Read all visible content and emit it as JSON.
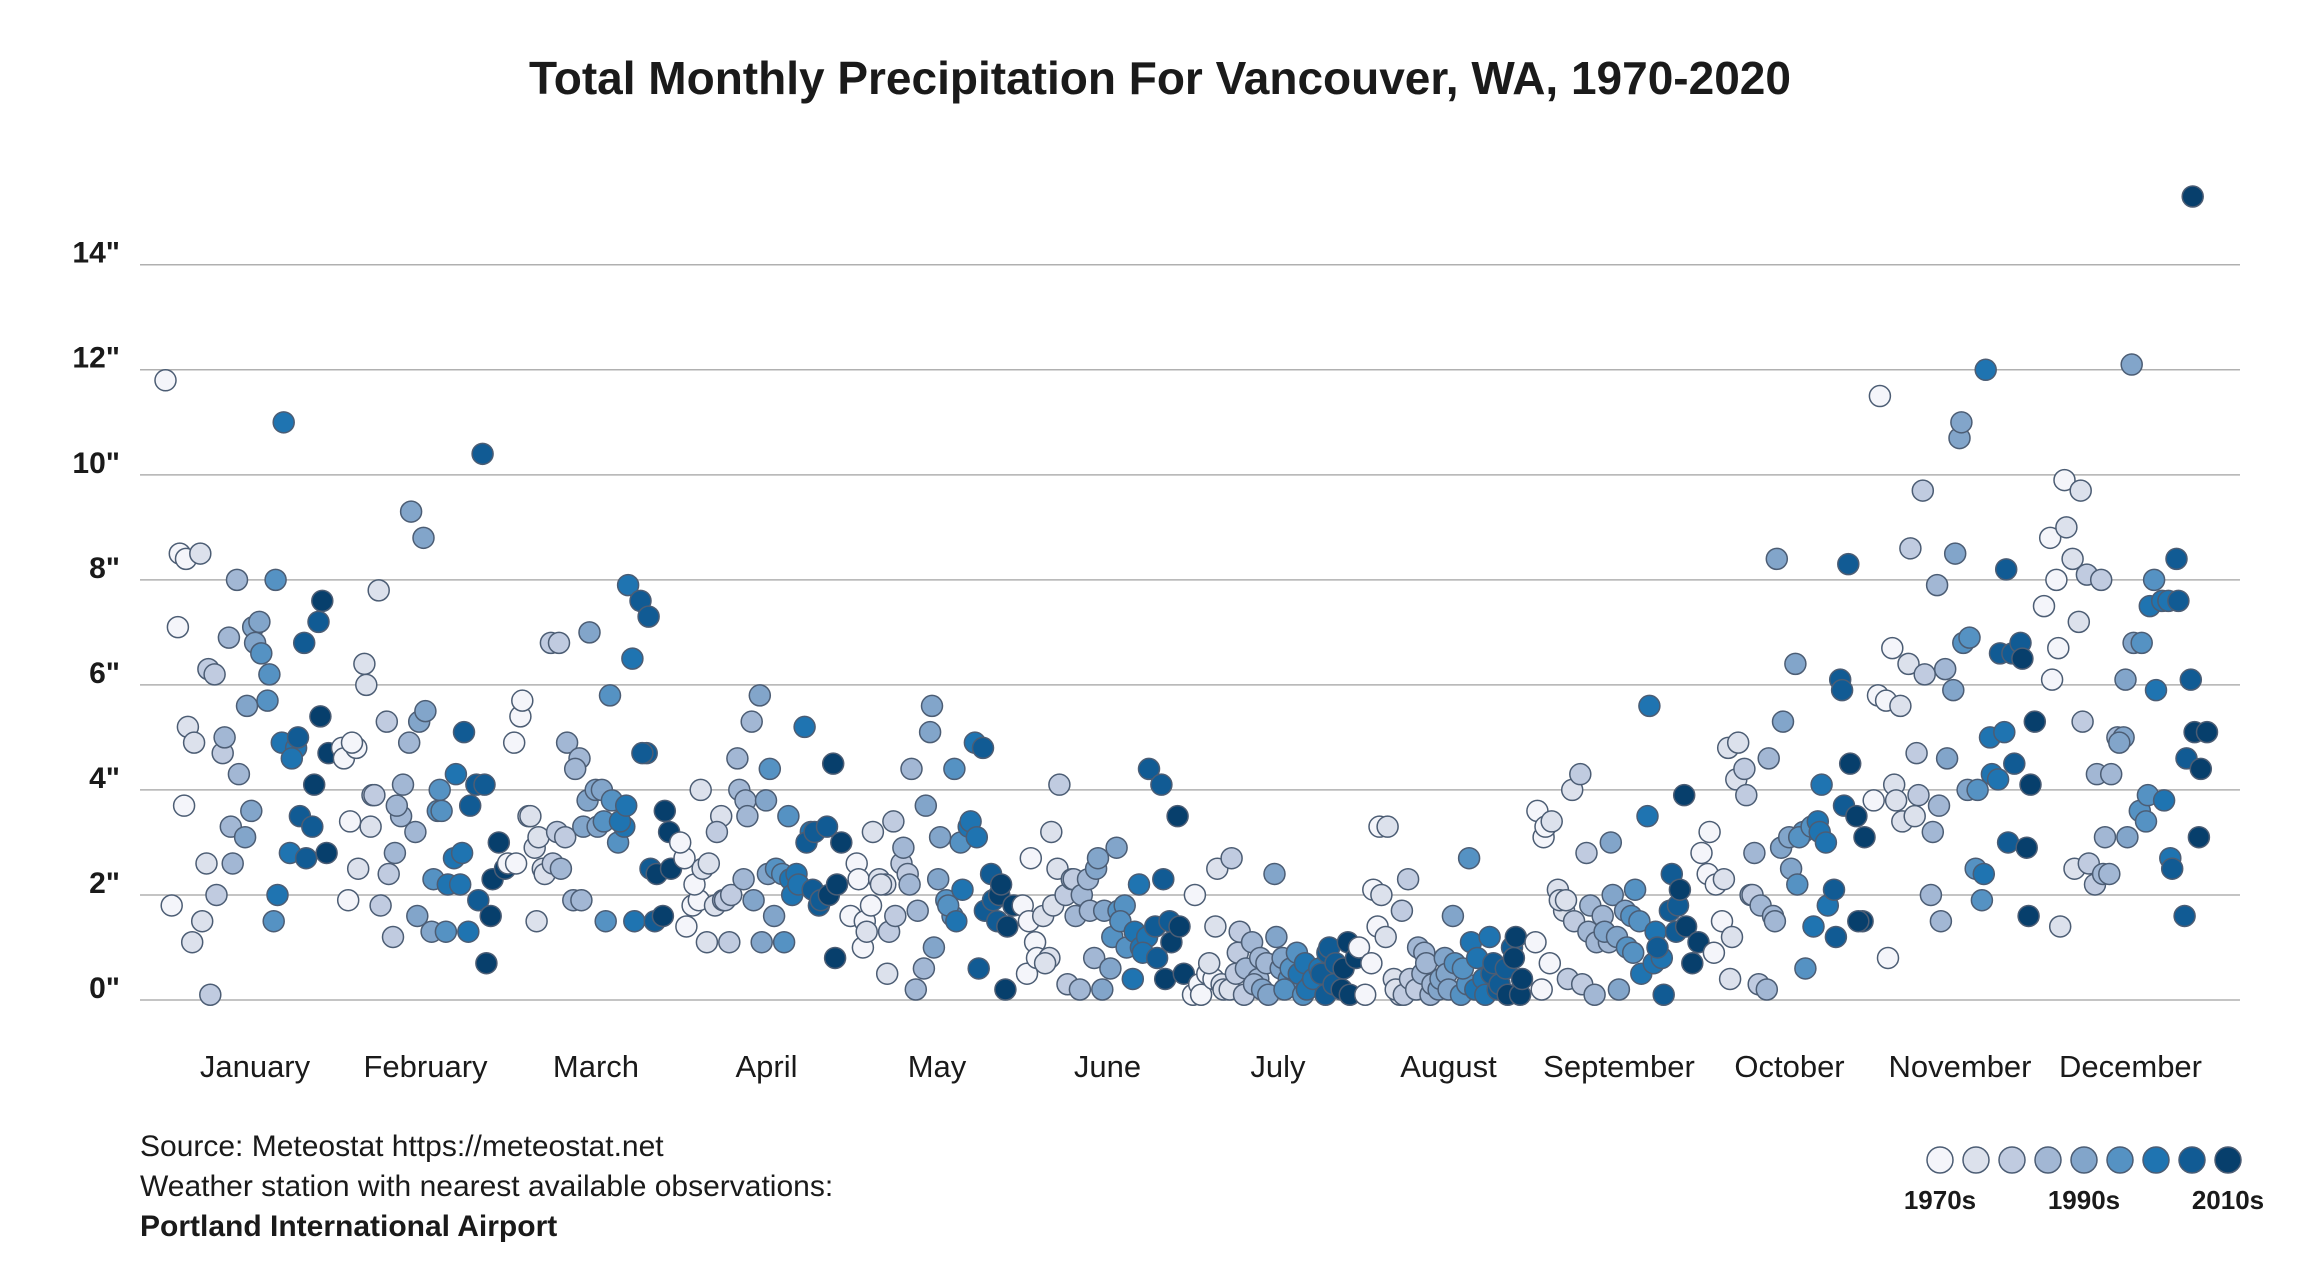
{
  "chart_data": {
    "type": "strip",
    "title": "Total Monthly Precipitation For Vancouver, WA, 1970-2020",
    "categories": [
      "January",
      "February",
      "March",
      "April",
      "May",
      "June",
      "July",
      "August",
      "September",
      "October",
      "November",
      "December"
    ],
    "values": [
      [
        11.8,
        1.8,
        7.1,
        3.7,
        8.5,
        8.4,
        1.1,
        5.2,
        4.9,
        8.5,
        2.6,
        1.5,
        6.3,
        6.2,
        0.1,
        2.0,
        4.7,
        6.9,
        5.0,
        3.3,
        8.0,
        2.6,
        4.3,
        3.1,
        3.6,
        5.6,
        7.1,
        7.2,
        6.8,
        6.6,
        5.7,
        1.5,
        6.2,
        8.0,
        4.9,
        2.0,
        11.0,
        2.8,
        4.8,
        4.6,
        5.0,
        6.8,
        3.5,
        2.7,
        3.3,
        7.2,
        4.1,
        5.4,
        2.8,
        7.6,
        4.7
      ],
      [
        4.8,
        1.9,
        4.6,
        3.4,
        4.8,
        4.9,
        2.5,
        6.4,
        3.3,
        6.0,
        3.9,
        7.8,
        3.9,
        1.8,
        5.3,
        1.2,
        2.4,
        2.8,
        3.5,
        3.7,
        4.1,
        4.9,
        3.2,
        9.3,
        1.6,
        8.8,
        5.3,
        5.5,
        1.3,
        3.6,
        2.3,
        4.0,
        1.3,
        3.6,
        2.2,
        2.7,
        2.2,
        4.3,
        2.8,
        1.3,
        5.1,
        3.7,
        4.1,
        10.4,
        1.9,
        4.1,
        1.6,
        0.7,
        2.3,
        3.0,
        2.5
      ],
      [
        2.6,
        4.9,
        5.4,
        2.6,
        5.7,
        3.5,
        2.9,
        3.5,
        1.5,
        2.5,
        3.1,
        2.4,
        6.8,
        3.2,
        2.6,
        6.8,
        3.1,
        2.5,
        4.9,
        1.9,
        4.6,
        4.4,
        1.9,
        3.8,
        3.3,
        7.0,
        4.0,
        4.0,
        3.3,
        3.4,
        5.8,
        1.5,
        3.8,
        3.0,
        3.3,
        3.4,
        3.7,
        6.5,
        7.9,
        1.5,
        7.6,
        4.7,
        4.7,
        7.3,
        1.5,
        2.5,
        2.4,
        1.6,
        3.2,
        3.6,
        2.5
      ],
      [
        2.7,
        3.0,
        1.4,
        1.8,
        1.9,
        2.2,
        4.0,
        1.1,
        2.5,
        2.6,
        1.8,
        3.5,
        3.2,
        1.9,
        1.1,
        1.9,
        2.0,
        4.6,
        2.3,
        4.0,
        3.8,
        5.3,
        3.5,
        1.9,
        5.8,
        3.8,
        1.1,
        2.4,
        1.6,
        4.4,
        2.5,
        2.4,
        3.5,
        1.1,
        2.3,
        2.4,
        2.0,
        2.2,
        5.2,
        3.2,
        3.0,
        2.1,
        1.8,
        3.2,
        1.9,
        3.3,
        4.5,
        2.0,
        0.8,
        3.0,
        2.2
      ],
      [
        1.6,
        2.6,
        1.0,
        2.3,
        1.5,
        1.8,
        1.3,
        3.2,
        2.3,
        2.2,
        2.2,
        0.5,
        3.4,
        1.3,
        1.6,
        2.6,
        2.4,
        2.9,
        2.2,
        0.2,
        4.4,
        1.7,
        0.6,
        5.1,
        3.7,
        5.6,
        2.3,
        1.0,
        3.1,
        1.9,
        1.6,
        1.8,
        4.4,
        3.0,
        1.5,
        2.1,
        3.3,
        4.9,
        3.4,
        3.1,
        4.8,
        0.6,
        1.7,
        2.4,
        1.5,
        1.9,
        2.0,
        0.2,
        2.2,
        1.4,
        1.8
      ],
      [
        0.5,
        1.8,
        1.5,
        1.1,
        2.7,
        0.8,
        1.6,
        0.8,
        0.7,
        3.2,
        2.5,
        1.8,
        4.1,
        2.0,
        2.3,
        0.3,
        2.3,
        0.2,
        1.6,
        2.0,
        2.3,
        0.8,
        1.7,
        2.5,
        0.2,
        2.7,
        1.7,
        0.6,
        2.9,
        1.2,
        1.7,
        1.8,
        1.5,
        1.0,
        0.4,
        2.2,
        1.3,
        1.0,
        1.2,
        0.9,
        4.4,
        1.4,
        4.1,
        0.8,
        2.3,
        1.5,
        0.4,
        1.1,
        3.5,
        0.5,
        1.4
      ],
      [
        0.1,
        0.3,
        2.0,
        0.1,
        0.5,
        0.4,
        0.7,
        1.4,
        0.3,
        2.5,
        0.2,
        0.2,
        0.5,
        2.7,
        0.9,
        0.1,
        1.3,
        0.6,
        1.1,
        0.4,
        0.3,
        0.8,
        0.7,
        0.2,
        0.1,
        2.4,
        0.6,
        1.2,
        0.8,
        0.4,
        0.2,
        0.6,
        0.9,
        0.1,
        0.5,
        0.7,
        0.3,
        0.2,
        0.4,
        0.6,
        0.1,
        0.5,
        0.9,
        0.3,
        1.0,
        0.7,
        0.2,
        1.1,
        0.6,
        0.1,
        0.8
      ],
      [
        1.0,
        0.1,
        0.7,
        1.4,
        2.1,
        3.3,
        1.2,
        2.0,
        3.3,
        0.4,
        0.1,
        0.2,
        1.7,
        2.3,
        0.1,
        0.4,
        0.2,
        0.5,
        1.0,
        0.9,
        0.1,
        0.7,
        0.3,
        0.2,
        0.8,
        0.4,
        0.5,
        1.6,
        0.2,
        0.7,
        0.1,
        0.3,
        0.6,
        2.7,
        0.2,
        1.1,
        0.8,
        0.4,
        1.2,
        0.1,
        0.5,
        0.2,
        0.7,
        0.3,
        0.6,
        1.0,
        0.1,
        0.8,
        0.1,
        1.2,
        0.4
      ],
      [
        1.1,
        0.2,
        3.6,
        3.1,
        0.7,
        3.3,
        3.4,
        2.1,
        1.7,
        1.9,
        1.9,
        4.0,
        0.4,
        1.5,
        4.3,
        2.8,
        0.3,
        1.3,
        0.1,
        1.8,
        1.1,
        1.6,
        1.1,
        1.3,
        3.0,
        1.2,
        2.0,
        0.2,
        1.7,
        1.6,
        1.0,
        0.9,
        1.5,
        2.1,
        0.5,
        3.5,
        0.7,
        5.6,
        1.3,
        0.8,
        1.0,
        0.1,
        1.7,
        1.3,
        2.4,
        1.8,
        3.9,
        2.1,
        1.4,
        0.7,
        1.1
      ],
      [
        2.8,
        2.4,
        0.9,
        3.2,
        2.2,
        1.5,
        4.8,
        2.3,
        0.4,
        4.2,
        1.2,
        4.9,
        4.4,
        2.0,
        3.9,
        2.0,
        0.3,
        2.8,
        1.8,
        0.2,
        1.6,
        4.6,
        1.5,
        2.9,
        8.4,
        5.3,
        3.1,
        6.4,
        2.5,
        2.2,
        3.2,
        3.1,
        0.6,
        3.3,
        3.4,
        1.4,
        3.2,
        3.0,
        4.1,
        1.8,
        2.1,
        6.1,
        1.2,
        5.9,
        8.3,
        3.7,
        4.5,
        3.5,
        1.5,
        1.5,
        3.1
      ],
      [
        5.8,
        3.8,
        11.5,
        5.7,
        6.7,
        0.8,
        4.1,
        5.6,
        3.8,
        3.4,
        6.4,
        3.5,
        8.6,
        4.7,
        9.7,
        3.9,
        6.2,
        2.0,
        7.9,
        3.2,
        3.7,
        6.3,
        1.5,
        4.6,
        5.9,
        10.7,
        8.5,
        11.0,
        4.0,
        6.8,
        6.9,
        2.5,
        1.9,
        4.0,
        2.4,
        5.0,
        12.0,
        4.3,
        4.2,
        5.1,
        6.6,
        8.2,
        6.6,
        3.0,
        4.5,
        6.8,
        2.9,
        6.5,
        1.6,
        5.3,
        4.1
      ],
      [
        7.5,
        8.8,
        8.0,
        6.1,
        6.7,
        9.9,
        1.4,
        9.0,
        8.4,
        7.2,
        2.5,
        9.7,
        8.1,
        5.3,
        2.6,
        2.2,
        8.0,
        4.3,
        2.4,
        2.4,
        3.1,
        4.3,
        5.0,
        5.0,
        4.9,
        6.1,
        12.1,
        3.1,
        6.8,
        3.6,
        3.4,
        6.8,
        3.9,
        8.0,
        7.5,
        5.9,
        7.6,
        7.6,
        3.8,
        2.7,
        8.4,
        2.5,
        7.6,
        1.6,
        6.1,
        4.6,
        15.3,
        3.1,
        5.1,
        4.4,
        5.1
      ]
    ],
    "ylim": [
      -0.8,
      15.5
    ],
    "yticks": [
      {
        "value": 0,
        "label": "0\""
      },
      {
        "value": 2,
        "label": "2\""
      },
      {
        "value": 4,
        "label": "4\""
      },
      {
        "value": 6,
        "label": "6\""
      },
      {
        "value": 8,
        "label": "8\""
      },
      {
        "value": 10,
        "label": "10\""
      },
      {
        "value": 12,
        "label": "12\""
      },
      {
        "value": 14,
        "label": "14\""
      }
    ],
    "grid": true,
    "legend": [
      {
        "color": "#f4f5fa",
        "label": "1970s"
      },
      {
        "color": "#dce1ec"
      },
      {
        "color": "#c0cbe0"
      },
      {
        "color": "#a2b7d4"
      },
      {
        "color": "#82a5ca",
        "label": "1990s"
      },
      {
        "color": "#5592c3"
      },
      {
        "color": "#1f74b1"
      },
      {
        "color": "#115b94"
      },
      {
        "color": "#073f6c",
        "label": "2010s"
      }
    ],
    "notes": [
      "Source: Meteostat https://meteostat.net",
      "Weather station with nearest available observations:"
    ],
    "station": "Portland International Airport"
  }
}
